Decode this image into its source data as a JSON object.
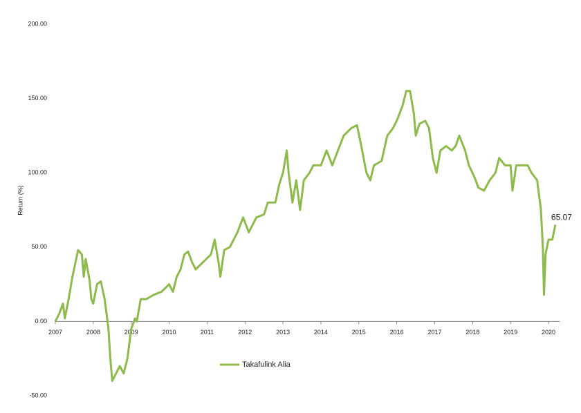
{
  "chart_data": {
    "type": "line",
    "y_label": "Return (%)",
    "annotation": "65.07",
    "x": [
      2007.0,
      2007.1,
      2007.2,
      2007.25,
      2007.35,
      2007.45,
      2007.55,
      2007.6,
      2007.7,
      2007.75,
      2007.8,
      2007.9,
      2007.95,
      2008.0,
      2008.1,
      2008.2,
      2008.3,
      2008.4,
      2008.45,
      2008.5,
      2008.6,
      2008.7,
      2008.8,
      2008.9,
      2009.0,
      2009.1,
      2009.15,
      2009.25,
      2009.4,
      2009.6,
      2009.8,
      2010.0,
      2010.1,
      2010.2,
      2010.3,
      2010.4,
      2010.5,
      2010.6,
      2010.7,
      2010.9,
      2011.1,
      2011.2,
      2011.3,
      2011.35,
      2011.45,
      2011.6,
      2011.8,
      2011.95,
      2012.1,
      2012.3,
      2012.5,
      2012.6,
      2012.8,
      2012.9,
      2013.0,
      2013.1,
      2013.15,
      2013.25,
      2013.35,
      2013.45,
      2013.55,
      2013.7,
      2013.8,
      2014.0,
      2014.15,
      2014.3,
      2014.45,
      2014.6,
      2014.8,
      2014.95,
      2015.05,
      2015.2,
      2015.3,
      2015.4,
      2015.6,
      2015.75,
      2015.9,
      2016.0,
      2016.15,
      2016.25,
      2016.35,
      2016.45,
      2016.5,
      2016.6,
      2016.75,
      2016.85,
      2016.95,
      2017.05,
      2017.15,
      2017.3,
      2017.45,
      2017.55,
      2017.65,
      2017.8,
      2017.9,
      2018.05,
      2018.15,
      2018.3,
      2018.45,
      2018.6,
      2018.7,
      2018.85,
      2019.0,
      2019.05,
      2019.15,
      2019.3,
      2019.45,
      2019.55,
      2019.7,
      2019.8,
      2019.85,
      2019.88,
      2019.92,
      2020.0,
      2020.1,
      2020.18
    ],
    "series": [
      {
        "name": "Takafulink Alia",
        "color": "#8dba4a",
        "values": [
          0,
          5,
          12,
          2,
          15,
          30,
          42,
          48,
          45,
          30,
          42,
          28,
          15,
          12,
          25,
          27,
          15,
          -5,
          -25,
          -40,
          -35,
          -30,
          -35,
          -25,
          -5,
          2,
          0,
          15,
          15,
          18,
          20,
          25,
          20,
          30,
          35,
          45,
          47,
          40,
          35,
          40,
          45,
          55,
          40,
          30,
          48,
          50,
          60,
          70,
          60,
          70,
          72,
          80,
          80,
          92,
          100,
          115,
          100,
          80,
          95,
          75,
          95,
          100,
          105,
          105,
          115,
          105,
          115,
          125,
          130,
          132,
          120,
          100,
          95,
          105,
          108,
          125,
          130,
          135,
          145,
          155,
          155,
          140,
          125,
          133,
          135,
          130,
          110,
          100,
          115,
          118,
          115,
          118,
          125,
          115,
          105,
          97,
          90,
          88,
          95,
          100,
          110,
          105,
          105,
          88,
          105,
          105,
          105,
          100,
          95,
          75,
          50,
          18,
          45,
          55,
          55,
          65.07
        ]
      }
    ],
    "xlim": [
      2007,
      2020.3
    ],
    "xticks": [
      2007,
      2008,
      2009,
      2010,
      2011,
      2012,
      2013,
      2014,
      2015,
      2016,
      2017,
      2018,
      2019,
      2020
    ],
    "ylim": [
      -50,
      200
    ],
    "yticks": [
      {
        "value": -50,
        "label": "-50.00"
      },
      {
        "value": 0,
        "label": "0.00"
      },
      {
        "value": 50,
        "label": "50.00"
      },
      {
        "value": 100,
        "label": "100.00"
      },
      {
        "value": 150,
        "label": "150.00"
      },
      {
        "value": 200,
        "label": "200.00"
      }
    ]
  }
}
